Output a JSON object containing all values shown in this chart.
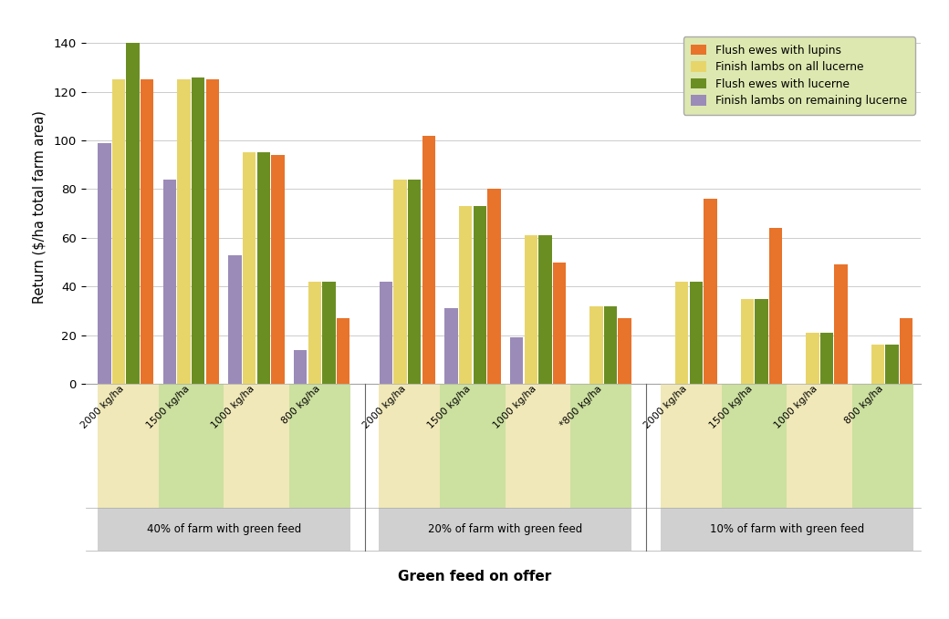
{
  "groups": [
    "40% of farm with green feed",
    "20% of farm with green feed",
    "10% of farm with green feed"
  ],
  "subgroup_labels": [
    [
      "2000 kg/ha",
      "1500 kg/ha",
      "1000 kg/ha",
      "800 kg/ha"
    ],
    [
      "2000 kg/ha",
      "1500 kg/ha",
      "1000 kg/ha",
      "*800 kg/ha"
    ],
    [
      "2000 kg/ha",
      "1500 kg/ha",
      "1000 kg/ha",
      "800 kg/ha"
    ]
  ],
  "series": [
    {
      "name": "Finish lambs on remaining lucerne",
      "color": "#9B8BB8",
      "values": [
        [
          99,
          84,
          53,
          14
        ],
        [
          42,
          31,
          19,
          0
        ],
        [
          0,
          0,
          0,
          0
        ]
      ]
    },
    {
      "name": "Finish lambs on all lucerne",
      "color": "#E8D56A",
      "values": [
        [
          125,
          125,
          95,
          42
        ],
        [
          84,
          73,
          61,
          32
        ],
        [
          42,
          35,
          21,
          16
        ]
      ]
    },
    {
      "name": "Flush ewes with lucerne",
      "color": "#6B8E23",
      "values": [
        [
          140,
          126,
          95,
          42
        ],
        [
          84,
          73,
          61,
          32
        ],
        [
          42,
          35,
          21,
          16
        ]
      ]
    },
    {
      "name": "Flush ewes with lupins",
      "color": "#E8732A",
      "values": [
        [
          125,
          125,
          94,
          27
        ],
        [
          102,
          80,
          50,
          27
        ],
        [
          76,
          64,
          49,
          27
        ]
      ]
    }
  ],
  "legend_order": [
    3,
    1,
    2,
    0
  ],
  "ylabel": "Return ($/ha total farm area)",
  "xlabel": "Green feed on offer",
  "ylim": [
    0,
    145
  ],
  "yticks": [
    0,
    20,
    40,
    60,
    80,
    100,
    120,
    140
  ],
  "bar_width": 0.6,
  "subgroup_padding": 0.35,
  "group_padding": 1.2,
  "subgroup_bg_colors_40": [
    "#f5efc8",
    "#dde8b0",
    "#f5efc8",
    "#dde8b0"
  ],
  "subgroup_bg_colors_20": [
    "#f5efc8",
    "#dde8b0",
    "#f5efc8",
    "#dde8b0"
  ],
  "subgroup_bg_colors_10": [
    "#f5efc8",
    "#dde8b0",
    "#f5efc8",
    "#dde8b0"
  ],
  "group_label_bg": "#d0d0d0",
  "legend_bg_color": "#dde8b0",
  "grid_color": "#cccccc"
}
